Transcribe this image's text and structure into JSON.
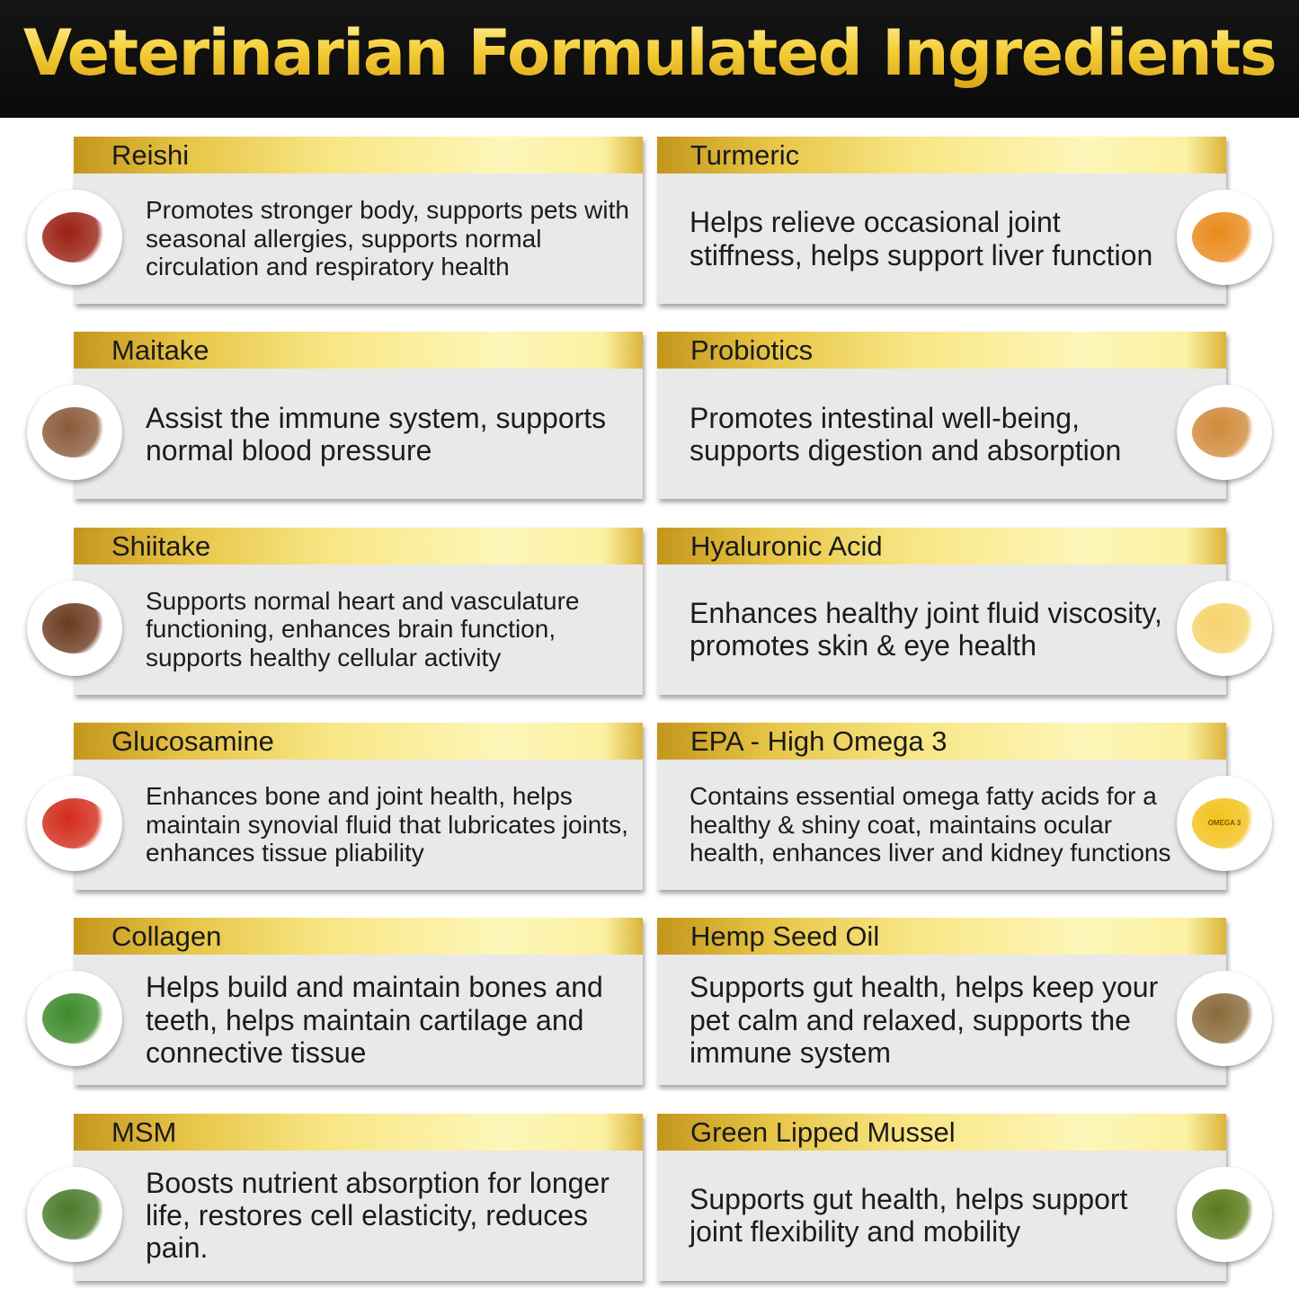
{
  "title": "Veterinarian Formulated Ingredients",
  "ingredients": [
    {
      "name": "Reishi",
      "text": "Promotes stronger body, supports pets with seasonal allergies, supports normal circulation and respiratory health",
      "icon": "reishi-mushroom-icon",
      "color": "#9a1f12",
      "size": 28
    },
    {
      "name": "Turmeric",
      "text": "Helps relieve occasional joint stiffness, helps support liver function",
      "icon": "turmeric-root-icon",
      "color": "#e98a1a",
      "size": 32
    },
    {
      "name": "Maitake",
      "text": "Assist the immune system, supports normal blood pressure",
      "icon": "maitake-mushroom-icon",
      "color": "#8a5a3a",
      "size": 32
    },
    {
      "name": "Probiotics",
      "text": "Promotes intestinal well-being, supports digestion and absorption",
      "icon": "probiotics-bacteria-icon",
      "color": "#d08a3a",
      "size": 32
    },
    {
      "name": "Shiitake",
      "text": "Supports normal heart and vasculature functioning, enhances brain function, supports healthy cellular activity",
      "icon": "shiitake-mushroom-icon",
      "color": "#6b3a20",
      "size": 28
    },
    {
      "name": "Hyaluronic Acid",
      "text": "Enhances healthy joint fluid viscosity, promotes skin & eye health",
      "icon": "oil-bowl-icon",
      "color": "#f5d36a",
      "size": 32
    },
    {
      "name": "Glucosamine",
      "text": "Enhances bone and joint health, helps maintain synovial fluid that lubricates joints, enhances tissue pliability",
      "icon": "lobster-icon",
      "color": "#d22a1a",
      "size": 28
    },
    {
      "name": "EPA - High Omega 3",
      "text": "Contains essential omega fatty acids for a healthy & shiny coat, maintains ocular health, enhances liver and kidney functions",
      "icon": "omega-3-capsules-icon",
      "color": "#f2c21a",
      "size": 28,
      "badge": "OMEGA 3"
    },
    {
      "name": "Collagen",
      "text": "Helps build and maintain bones and teeth, helps maintain cartilage and connective tissue",
      "icon": "leafy-greens-icon",
      "color": "#3c8a2a",
      "size": 32
    },
    {
      "name": "Hemp Seed Oil",
      "text": "Supports gut health, helps keep your pet calm and relaxed, supports the immune system",
      "icon": "hemp-seeds-icon",
      "color": "#8a6a3a",
      "size": 32
    },
    {
      "name": "MSM",
      "text": "Boosts nutrient absorption for longer life, restores cell elasticity, reduces pain.",
      "icon": "herbs-mortar-icon",
      "color": "#4a7a2a",
      "size": 32
    },
    {
      "name": "Green Lipped Mussel",
      "text": "Supports gut health, helps support joint flexibility and mobility",
      "icon": "green-mussel-icon",
      "color": "#5a7a1a",
      "size": 32
    }
  ]
}
